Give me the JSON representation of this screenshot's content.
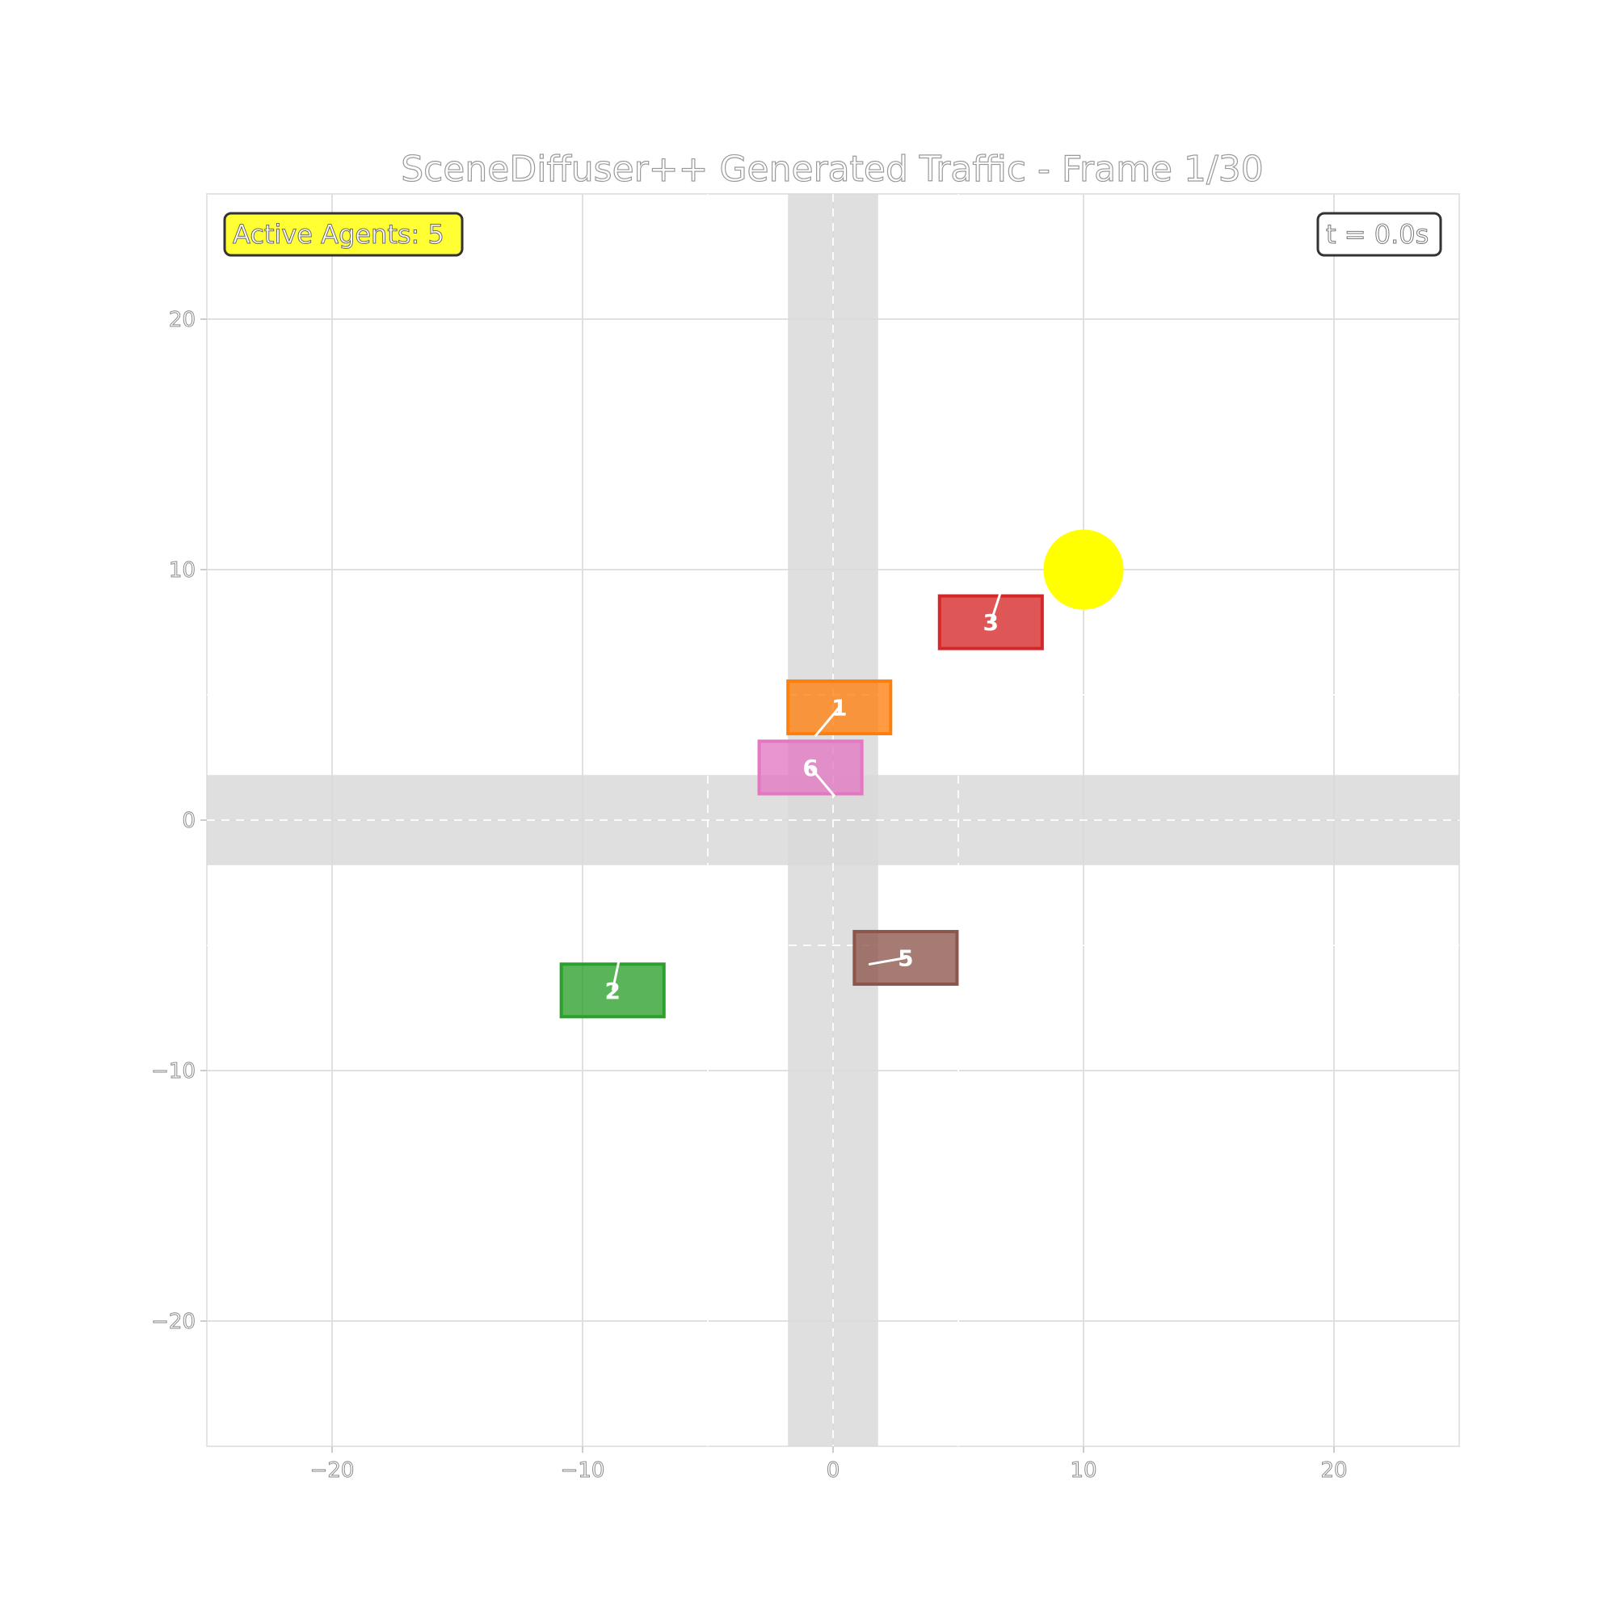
{
  "chart_data": {
    "type": "scatter",
    "title": "SceneDiffuser++ Generated Traffic - Frame 1/30",
    "xlabel": "",
    "ylabel": "",
    "xlim": [
      -25,
      25
    ],
    "ylim": [
      -25,
      25
    ],
    "xticks": [
      -20,
      -10,
      0,
      10,
      20
    ],
    "yticks": [
      20,
      10,
      0,
      -10,
      -20
    ],
    "xtick_labels": [
      "−20",
      "−10",
      "0",
      "10",
      "20"
    ],
    "ytick_labels": [
      "20",
      "10",
      "0",
      "−10",
      "−20"
    ],
    "grid": true,
    "roads": [
      {
        "orientation": "horizontal",
        "center": 0,
        "width": 3.6
      },
      {
        "orientation": "vertical",
        "center": 0,
        "width": 3.6
      }
    ],
    "lane_markings": {
      "horizontal_y": [
        0,
        5,
        -5
      ],
      "vertical_x": [
        0,
        5,
        -5
      ],
      "color": "#ffffff"
    },
    "traffic_light": {
      "x": 10,
      "y": 10,
      "radius": 1.6,
      "color": "#ffff00"
    },
    "agents": [
      {
        "id": "1",
        "x": 0.25,
        "y": 4.5,
        "length": 4.1,
        "width": 2.1,
        "heading_deg": -130,
        "color": "#ff7f0e"
      },
      {
        "id": "2",
        "x": -8.8,
        "y": -6.8,
        "length": 4.1,
        "width": 2.1,
        "heading_deg": 78,
        "color": "#2ca02c"
      },
      {
        "id": "3",
        "x": 6.3,
        "y": 7.9,
        "length": 4.1,
        "width": 2.1,
        "heading_deg": 72,
        "color": "#d62728"
      },
      {
        "id": "5",
        "x": 2.9,
        "y": -5.5,
        "length": 4.1,
        "width": 2.1,
        "heading_deg": 190,
        "color": "#8c564b"
      },
      {
        "id": "6",
        "x": -0.9,
        "y": 2.1,
        "length": 4.1,
        "width": 2.1,
        "heading_deg": -50,
        "color": "#e377c2"
      }
    ]
  },
  "badges": {
    "active_agents": "Active Agents: 5",
    "time": "t = 0.0s"
  },
  "colors": {
    "road": "#d9d9d9",
    "grid": "#e0e0e0",
    "agents_badge_bg": "#ffff33",
    "time_badge_bg": "#ffffff",
    "badge_border": "#333333"
  }
}
